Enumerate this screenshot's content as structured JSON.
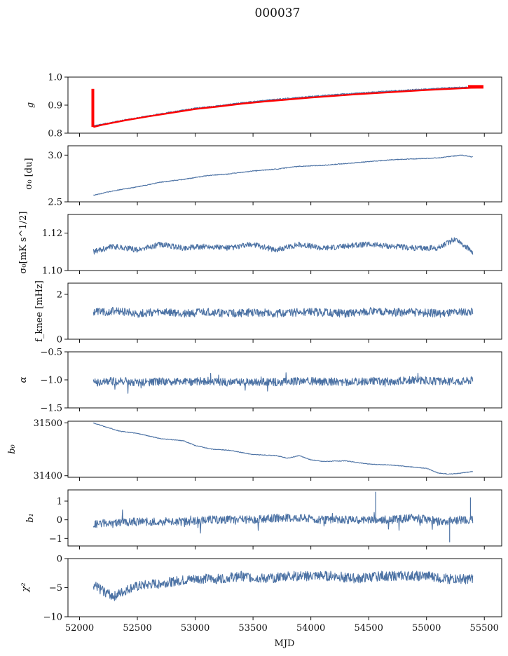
{
  "title": "000037",
  "colors": {
    "series": "#4c72a4",
    "highlight": "#ff0000",
    "axis": "#111111"
  },
  "chart_data": [
    {
      "type": "line",
      "key": "g",
      "ylabel": "g",
      "ylim": [
        0.8,
        1.0
      ],
      "yticks": [
        0.8,
        0.9,
        1.0
      ],
      "ytick_labels": [
        "0.8",
        "0.9",
        "1.0"
      ],
      "xlim": [
        51900,
        55650
      ],
      "grid": false,
      "series": [
        {
          "x": [
            52110,
            52200,
            52400,
            52600,
            52800,
            53000,
            53200,
            53400,
            53600,
            53800,
            54000,
            54200,
            54400,
            54600,
            54800,
            55000,
            55200,
            55400
          ],
          "values": [
            0.825,
            0.832,
            0.848,
            0.862,
            0.876,
            0.889,
            0.898,
            0.908,
            0.917,
            0.924,
            0.931,
            0.937,
            0.943,
            0.948,
            0.953,
            0.957,
            0.962,
            0.964
          ]
        }
      ],
      "highlight": {
        "spike_x": 52115,
        "spike_range": [
          0.822,
          0.958
        ],
        "x": [
          52120,
          52200,
          52400,
          52600,
          52800,
          53000,
          53200,
          53400,
          53600,
          53800,
          54000,
          54200,
          54400,
          54600,
          54800,
          55000,
          55200,
          55400,
          55480
        ],
        "values": [
          0.822,
          0.83,
          0.846,
          0.86,
          0.873,
          0.886,
          0.895,
          0.905,
          0.913,
          0.92,
          0.927,
          0.933,
          0.939,
          0.944,
          0.949,
          0.954,
          0.958,
          0.962,
          0.964
        ]
      }
    },
    {
      "type": "line",
      "key": "sigma0_du",
      "ylabel": "σ₀ [du]",
      "ylim": [
        2.5,
        3.1
      ],
      "yticks": [
        2.5,
        3.0
      ],
      "ytick_labels": [
        "2.5",
        "3.0"
      ],
      "xlim": [
        51900,
        55650
      ],
      "grid": false,
      "series": [
        {
          "x": [
            52120,
            52300,
            52500,
            52700,
            52900,
            53100,
            53300,
            53500,
            53700,
            53900,
            54100,
            54300,
            54500,
            54700,
            54900,
            55100,
            55300,
            55400
          ],
          "values": [
            2.57,
            2.62,
            2.66,
            2.71,
            2.74,
            2.78,
            2.8,
            2.83,
            2.85,
            2.88,
            2.89,
            2.91,
            2.93,
            2.95,
            2.96,
            2.97,
            3.0,
            2.98
          ]
        }
      ]
    },
    {
      "type": "line",
      "key": "sigma0_mk",
      "ylabel": "σ₀[mK s^1/2]",
      "ylim": [
        1.1,
        1.13
      ],
      "yticks": [
        1.1,
        1.12
      ],
      "ytick_labels": [
        "1.10",
        "1.12"
      ],
      "xlim": [
        51900,
        55650
      ],
      "grid": false,
      "series": [
        {
          "x": [
            52120,
            52300,
            52500,
            52700,
            52900,
            53100,
            53300,
            53500,
            53700,
            53900,
            54100,
            54300,
            54500,
            54700,
            54900,
            55100,
            55250,
            55400
          ],
          "values": [
            1.11,
            1.113,
            1.111,
            1.114,
            1.112,
            1.113,
            1.112,
            1.114,
            1.111,
            1.114,
            1.112,
            1.113,
            1.114,
            1.113,
            1.112,
            1.112,
            1.117,
            1.11
          ]
        }
      ]
    },
    {
      "type": "line",
      "key": "fknee",
      "ylabel": "f_knee [mHz]",
      "ylim": [
        0,
        2.5
      ],
      "yticks": [
        0,
        2
      ],
      "ytick_labels": [
        "0",
        "2"
      ],
      "xlim": [
        51900,
        55650
      ],
      "grid": false,
      "series": [
        {
          "x": [
            52120,
            52300,
            52500,
            52700,
            52900,
            53100,
            53300,
            53500,
            53700,
            53900,
            54100,
            54300,
            54500,
            54700,
            54900,
            55100,
            55300,
            55400
          ],
          "values": [
            1.2,
            1.25,
            1.15,
            1.2,
            1.15,
            1.2,
            1.15,
            1.2,
            1.15,
            1.2,
            1.2,
            1.15,
            1.25,
            1.2,
            1.2,
            1.15,
            1.2,
            1.25
          ]
        }
      ]
    },
    {
      "type": "line",
      "key": "alpha",
      "ylabel": "α",
      "ylim": [
        -1.5,
        -0.5
      ],
      "yticks": [
        -1.5,
        -1.0,
        -0.5
      ],
      "ytick_labels": [
        "−1.5",
        "−1.0",
        "−0.5"
      ],
      "xlim": [
        51900,
        55650
      ],
      "grid": false,
      "series": [
        {
          "x": [
            52120,
            52300,
            52500,
            52700,
            52900,
            53100,
            53300,
            53500,
            53700,
            53900,
            54100,
            54300,
            54500,
            54700,
            54900,
            55100,
            55300,
            55400
          ],
          "values": [
            -1.05,
            -1.02,
            -1.05,
            -1.03,
            -1.04,
            -1.02,
            -1.05,
            -1.03,
            -1.04,
            -1.02,
            -1.03,
            -1.04,
            -1.02,
            -1.03,
            -1.0,
            -1.03,
            -1.02,
            -1.0
          ]
        }
      ]
    },
    {
      "type": "line",
      "key": "b0",
      "ylabel": "b₀",
      "ylim": [
        31397,
        31503
      ],
      "yticks": [
        31400,
        31500
      ],
      "ytick_labels": [
        "31400",
        "31500"
      ],
      "xlim": [
        51900,
        55650
      ],
      "grid": false,
      "series": [
        {
          "x": [
            52120,
            52200,
            52350,
            52500,
            52700,
            52900,
            53000,
            53150,
            53300,
            53500,
            53700,
            53800,
            53900,
            54000,
            54100,
            54300,
            54500,
            54700,
            54900,
            55000,
            55100,
            55200,
            55300,
            55400
          ],
          "values": [
            31500,
            31494,
            31484,
            31480,
            31470,
            31466,
            31457,
            31450,
            31448,
            31440,
            31438,
            31433,
            31438,
            31430,
            31427,
            31428,
            31422,
            31420,
            31416,
            31414,
            31405,
            31403,
            31405,
            31408
          ]
        }
      ]
    },
    {
      "type": "line",
      "key": "b1",
      "ylabel": "b₁",
      "ylim": [
        -1.4,
        1.6
      ],
      "yticks": [
        -1,
        0,
        1
      ],
      "ytick_labels": [
        "−1",
        "0",
        "1"
      ],
      "xlim": [
        51900,
        55650
      ],
      "grid": false,
      "series": [
        {
          "x": [
            52120,
            52300,
            52500,
            52700,
            52900,
            53100,
            53300,
            53500,
            53700,
            53900,
            54100,
            54300,
            54500,
            54700,
            54900,
            55100,
            55300,
            55400
          ],
          "values": [
            -0.2,
            -0.2,
            -0.1,
            -0.1,
            -0.1,
            0.0,
            0.0,
            0.0,
            0.1,
            0.1,
            0.0,
            0.0,
            0.0,
            0.0,
            0.1,
            -0.1,
            0.0,
            0.0
          ]
        }
      ],
      "spikes": {
        "x": [
          54560,
          55200,
          55380
        ],
        "values": [
          1.5,
          -1.2,
          1.2
        ]
      }
    },
    {
      "type": "line",
      "key": "chi2",
      "ylabel": "χ²",
      "xlabel": "MJD",
      "ylim": [
        -10,
        0
      ],
      "yticks": [
        -10,
        -5,
        0
      ],
      "ytick_labels": [
        "−10",
        "−5",
        "0"
      ],
      "xlim": [
        51900,
        55650
      ],
      "xticks": [
        52000,
        52500,
        53000,
        53500,
        54000,
        54500,
        55000,
        55500
      ],
      "xtick_labels": [
        "52000",
        "52500",
        "53000",
        "53500",
        "54000",
        "54500",
        "55000",
        "55500"
      ],
      "grid": false,
      "series": [
        {
          "x": [
            52120,
            52200,
            52300,
            52450,
            52600,
            52800,
            53000,
            53200,
            53400,
            53600,
            53800,
            54000,
            54200,
            54400,
            54600,
            54800,
            55000,
            55200,
            55400
          ],
          "values": [
            -4.5,
            -5.5,
            -6.5,
            -5.0,
            -4.5,
            -4.0,
            -3.5,
            -3.5,
            -3.0,
            -3.5,
            -3.0,
            -3.0,
            -3.0,
            -3.5,
            -3.0,
            -3.0,
            -3.0,
            -3.5,
            -3.5
          ]
        }
      ]
    }
  ]
}
